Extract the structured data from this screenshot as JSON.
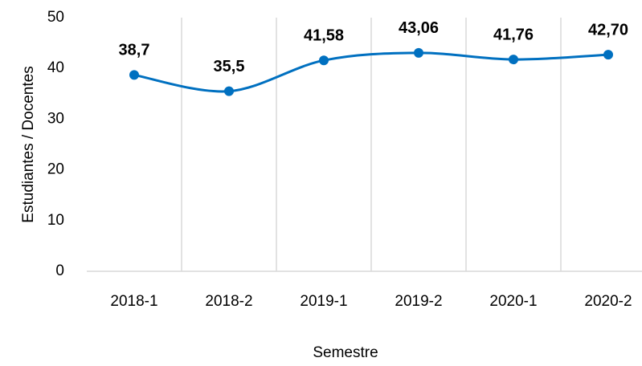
{
  "chart_data": {
    "type": "line",
    "x_label": "Semestre",
    "y_label": "Estudiantes / Docentes",
    "categories": [
      "2018-1",
      "2018-2",
      "2019-1",
      "2019-2",
      "2020-1",
      "2020-2"
    ],
    "values": [
      38.7,
      35.5,
      41.58,
      43.06,
      41.76,
      42.7
    ],
    "value_labels": [
      "38,7",
      "35,5",
      "41,58",
      "43,06",
      "41,76",
      "42,70"
    ],
    "color": "#0070c0",
    "smooth": true,
    "ylim": [
      0,
      50
    ],
    "yticks": [
      0,
      10,
      20,
      30,
      40,
      50
    ],
    "grid": true
  }
}
